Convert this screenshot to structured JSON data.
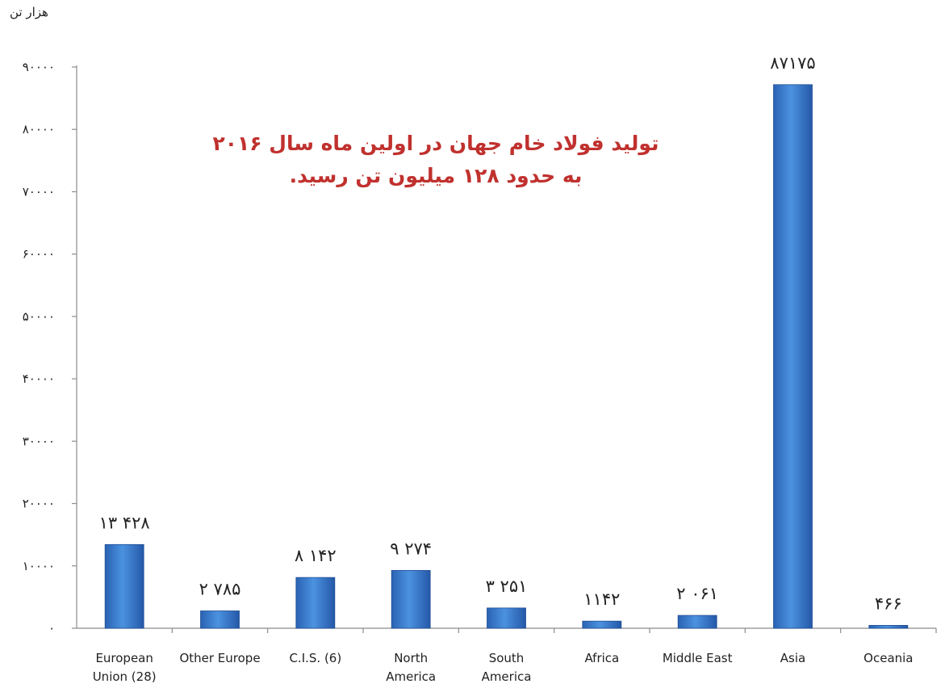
{
  "chart_data": {
    "type": "bar",
    "unit_label": "هزار تن",
    "annotation": [
      "تولید فولاد خام جهان در اولین ماه سال ۲۰۱۶",
      "به حدود ۱۲۸ میلیون تن رسید."
    ],
    "categories": [
      [
        "European",
        "Union (28)"
      ],
      [
        "Other Europe"
      ],
      [
        "C.I.S. (6)"
      ],
      [
        "North",
        "America"
      ],
      [
        "South",
        "America"
      ],
      [
        "Africa"
      ],
      [
        "Middle East"
      ],
      [
        "Asia"
      ],
      [
        "Oceania"
      ]
    ],
    "values": [
      13428,
      2785,
      8142,
      9274,
      3251,
      1142,
      2061,
      87175,
      466
    ],
    "value_labels": [
      "۱۳ ۴۲۸",
      "۲ ۷۸۵",
      "۸ ۱۴۲",
      "۹ ۲۷۴",
      "۳ ۲۵۱",
      "۱۱۴۲",
      "۲ ۰۶۱",
      "۸۷۱۷۵",
      "۴۶۶"
    ],
    "yticks": [
      0,
      10000,
      20000,
      30000,
      40000,
      50000,
      60000,
      70000,
      80000,
      90000
    ],
    "ytick_labels": [
      "۰",
      "۱۰۰۰۰",
      "۲۰۰۰۰",
      "۳۰۰۰۰",
      "۴۰۰۰۰",
      "۵۰۰۰۰",
      "۶۰۰۰۰",
      "۷۰۰۰۰",
      "۸۰۰۰۰",
      "۹۰۰۰۰"
    ],
    "ylim": [
      0,
      90000
    ],
    "bar_color": "#3a7fd0",
    "grid": false
  }
}
